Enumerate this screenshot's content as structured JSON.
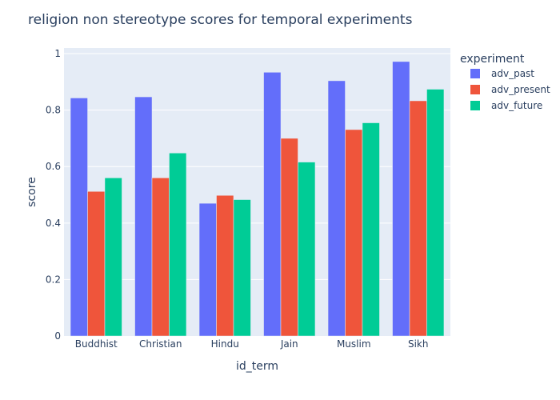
{
  "chart_data": {
    "type": "bar",
    "title": "religion non stereotype scores for temporal experiments",
    "xlabel": "id_term",
    "ylabel": "score",
    "categories": [
      "Buddhist",
      "Christian",
      "Hindu",
      "Jain",
      "Muslim",
      "Sikh"
    ],
    "series": [
      {
        "name": "adv_past",
        "color": "#636efa",
        "values": [
          0.843,
          0.847,
          0.47,
          0.934,
          0.904,
          0.972
        ]
      },
      {
        "name": "adv_present",
        "color": "#ef553b",
        "values": [
          0.512,
          0.56,
          0.498,
          0.7,
          0.731,
          0.833
        ]
      },
      {
        "name": "adv_future",
        "color": "#00cc96",
        "values": [
          0.56,
          0.648,
          0.483,
          0.616,
          0.755,
          0.874
        ]
      }
    ],
    "ylim": [
      0,
      1.02
    ],
    "yticks": [
      0,
      0.2,
      0.4,
      0.6,
      0.8,
      1
    ],
    "ytick_labels": [
      "0",
      "0.2",
      "0.4",
      "0.6",
      "0.8",
      "1"
    ],
    "legend": {
      "title": "experiment",
      "position": "right"
    },
    "grid": true,
    "colors": {
      "plot_background": "#e5ecf6",
      "gridline": "#ffffff",
      "text": "#2a3f5f"
    }
  }
}
